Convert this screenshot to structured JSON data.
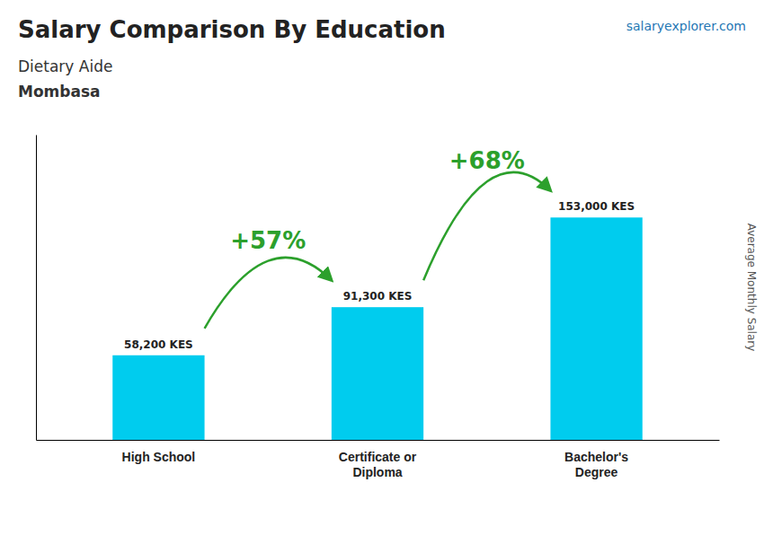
{
  "chart_data": {
    "type": "bar",
    "title": "Salary Comparison By Education",
    "subtitle": [
      "Dietary Aide",
      "Mombasa"
    ],
    "source": "salaryexplorer.com",
    "ylabel": "Average Monthly Salary",
    "categories": [
      "High School",
      "Certificate or\nDiploma",
      "Bachelor's\nDegree"
    ],
    "values": [
      58200,
      91300,
      153000
    ],
    "value_labels": [
      "58,200 KES",
      "91,300 KES",
      "153,000 KES"
    ],
    "data_labels": true,
    "color": "#00ccee",
    "annotations": [
      "+57%",
      "+68%"
    ],
    "ylim": [
      0,
      210000
    ],
    "yticks": [],
    "tick_labels": "x",
    "grid": false
  }
}
